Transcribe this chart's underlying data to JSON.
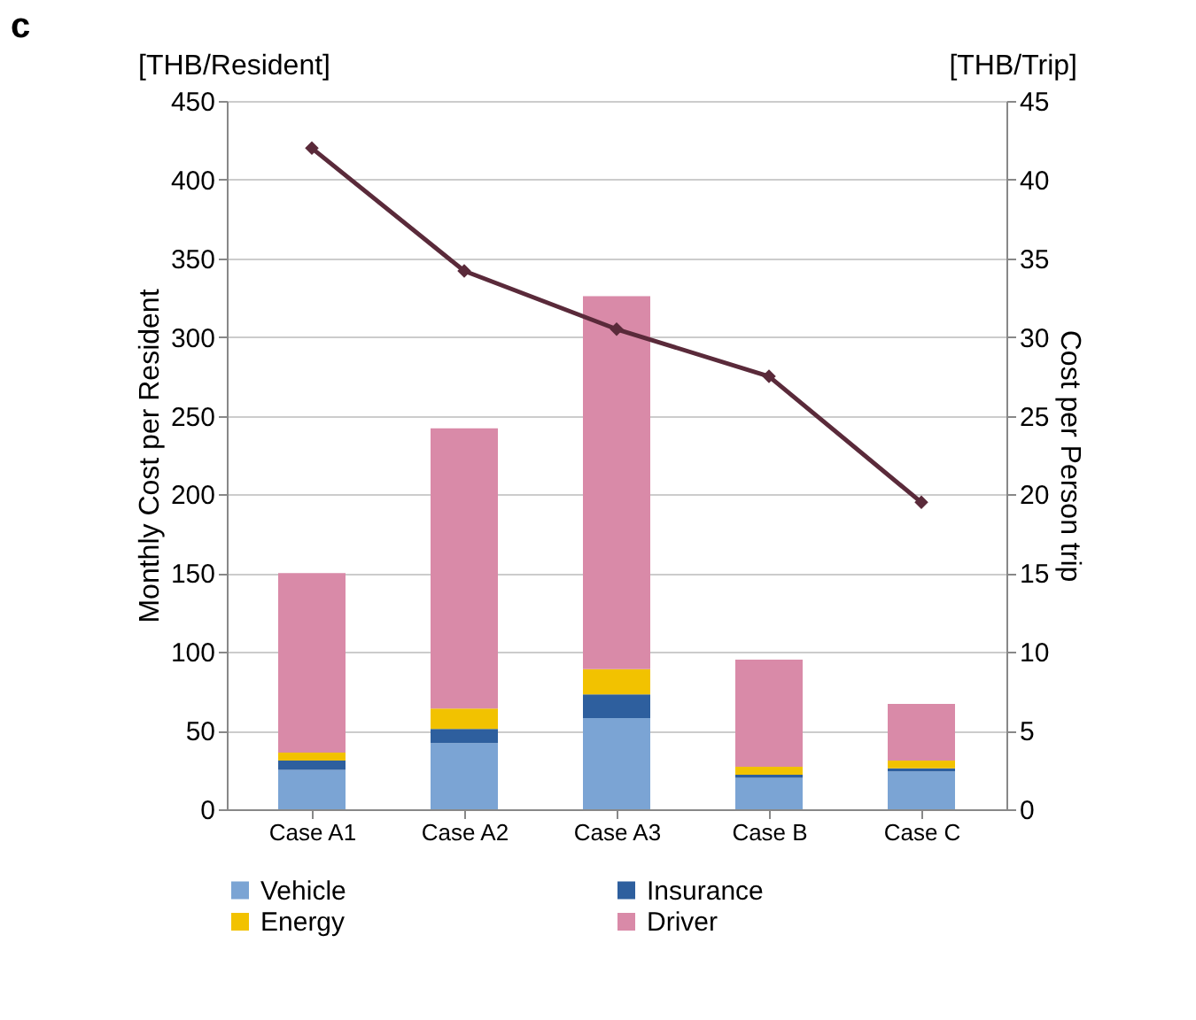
{
  "chart_data": {
    "type": "bar",
    "title": "c",
    "stacked": true,
    "ylabel": "Monthly Cost per Resident",
    "y2label": "Cost per Person trip",
    "annotations": [
      "[THB/Resident]",
      "[THB/Trip]"
    ],
    "categories": [
      "Case A1",
      "Case A2",
      "Case A3",
      "Case B",
      "Case C"
    ],
    "series": [
      {
        "name": "Vehicle",
        "color": "#7ba4d4",
        "values": [
          25,
          42,
          58,
          20,
          24
        ]
      },
      {
        "name": "Insurance",
        "color": "#2e5f9e",
        "values": [
          6,
          9,
          15,
          2,
          2
        ]
      },
      {
        "name": "Energy",
        "color": "#f2c200",
        "values": [
          5,
          13,
          16,
          5,
          5
        ]
      },
      {
        "name": "Driver",
        "color": "#d98aa8",
        "values": [
          114,
          178,
          237,
          68,
          36
        ]
      },
      {
        "type": "line",
        "axis": "y2",
        "color": "#5a2a3a",
        "marker": "diamond",
        "values": [
          42,
          34.2,
          30.5,
          27.5,
          19.5
        ]
      }
    ],
    "ylim": [
      0,
      450
    ],
    "yticks": [
      0,
      50,
      100,
      150,
      200,
      250,
      300,
      350,
      400,
      450
    ],
    "y2lim": [
      0,
      45
    ],
    "y2ticks": [
      0,
      5,
      10,
      15,
      20,
      25,
      30,
      35,
      40,
      45
    ],
    "grid": "y",
    "legend": "bottom"
  }
}
